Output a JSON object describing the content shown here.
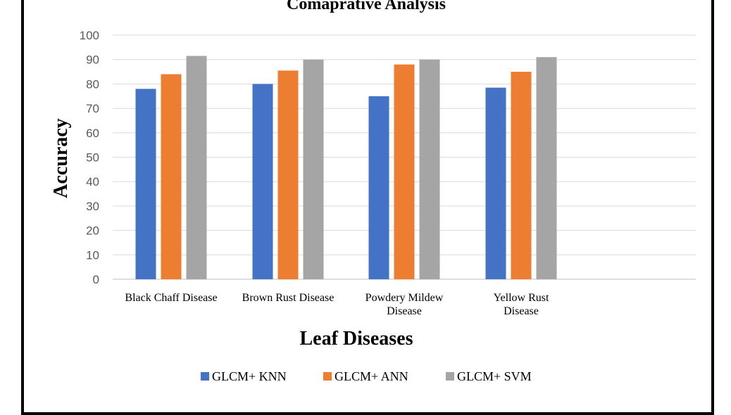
{
  "chart_data": {
    "type": "bar",
    "title": "Comaprative  Analysis",
    "xlabel": "Leaf Diseases",
    "ylabel": "Accuracy",
    "ylim": [
      0,
      100
    ],
    "yticks": [
      0,
      10,
      20,
      30,
      40,
      50,
      60,
      70,
      80,
      90,
      100
    ],
    "grid": true,
    "legend_position": "bottom",
    "categories": [
      [
        "Black Chaff Disease"
      ],
      [
        "Brown Rust Disease"
      ],
      [
        "Powdery Mildew",
        "Disease"
      ],
      [
        "Yellow  Rust",
        "Disease"
      ]
    ],
    "series": [
      {
        "name": "GLCM+ KNN",
        "color": "#4472C4",
        "values": [
          78,
          80,
          75,
          78.5
        ]
      },
      {
        "name": "GLCM+ ANN",
        "color": "#ED7D31",
        "values": [
          84,
          85.5,
          88,
          85
        ]
      },
      {
        "name": "GLCM+ SVM",
        "color": "#A5A5A5",
        "values": [
          91.5,
          90,
          90,
          91
        ]
      }
    ]
  }
}
